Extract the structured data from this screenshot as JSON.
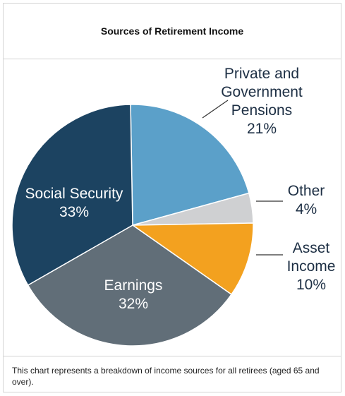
{
  "header": {
    "title": "Sources of Retirement Income"
  },
  "caption": "This chart represents a breakdown of income sources for all retirees (aged 65 and over).",
  "colors": {
    "social_security": "#1c4361",
    "pensions": "#5ba0c9",
    "other": "#cfd0d2",
    "asset_income": "#f3a11f",
    "earnings": "#616e78",
    "label_dark": "#1d2f44",
    "label_light": "#ffffff"
  },
  "chart_data": {
    "type": "pie",
    "title": "Sources of Retirement Income",
    "slices": [
      {
        "name": "Private and Government Pensions",
        "label_lines": [
          "Private and",
          "Government",
          "Pensions"
        ],
        "percent_label": "21%",
        "value": 21
      },
      {
        "name": "Other",
        "label_lines": [
          "Other"
        ],
        "percent_label": "4%",
        "value": 4
      },
      {
        "name": "Asset Income",
        "label_lines": [
          "Asset",
          "Income"
        ],
        "percent_label": "10%",
        "value": 10
      },
      {
        "name": "Earnings",
        "label_lines": [
          "Earnings"
        ],
        "percent_label": "32%",
        "value": 32
      },
      {
        "name": "Social Security",
        "label_lines": [
          "Social Security"
        ],
        "percent_label": "33%",
        "value": 33
      }
    ]
  }
}
